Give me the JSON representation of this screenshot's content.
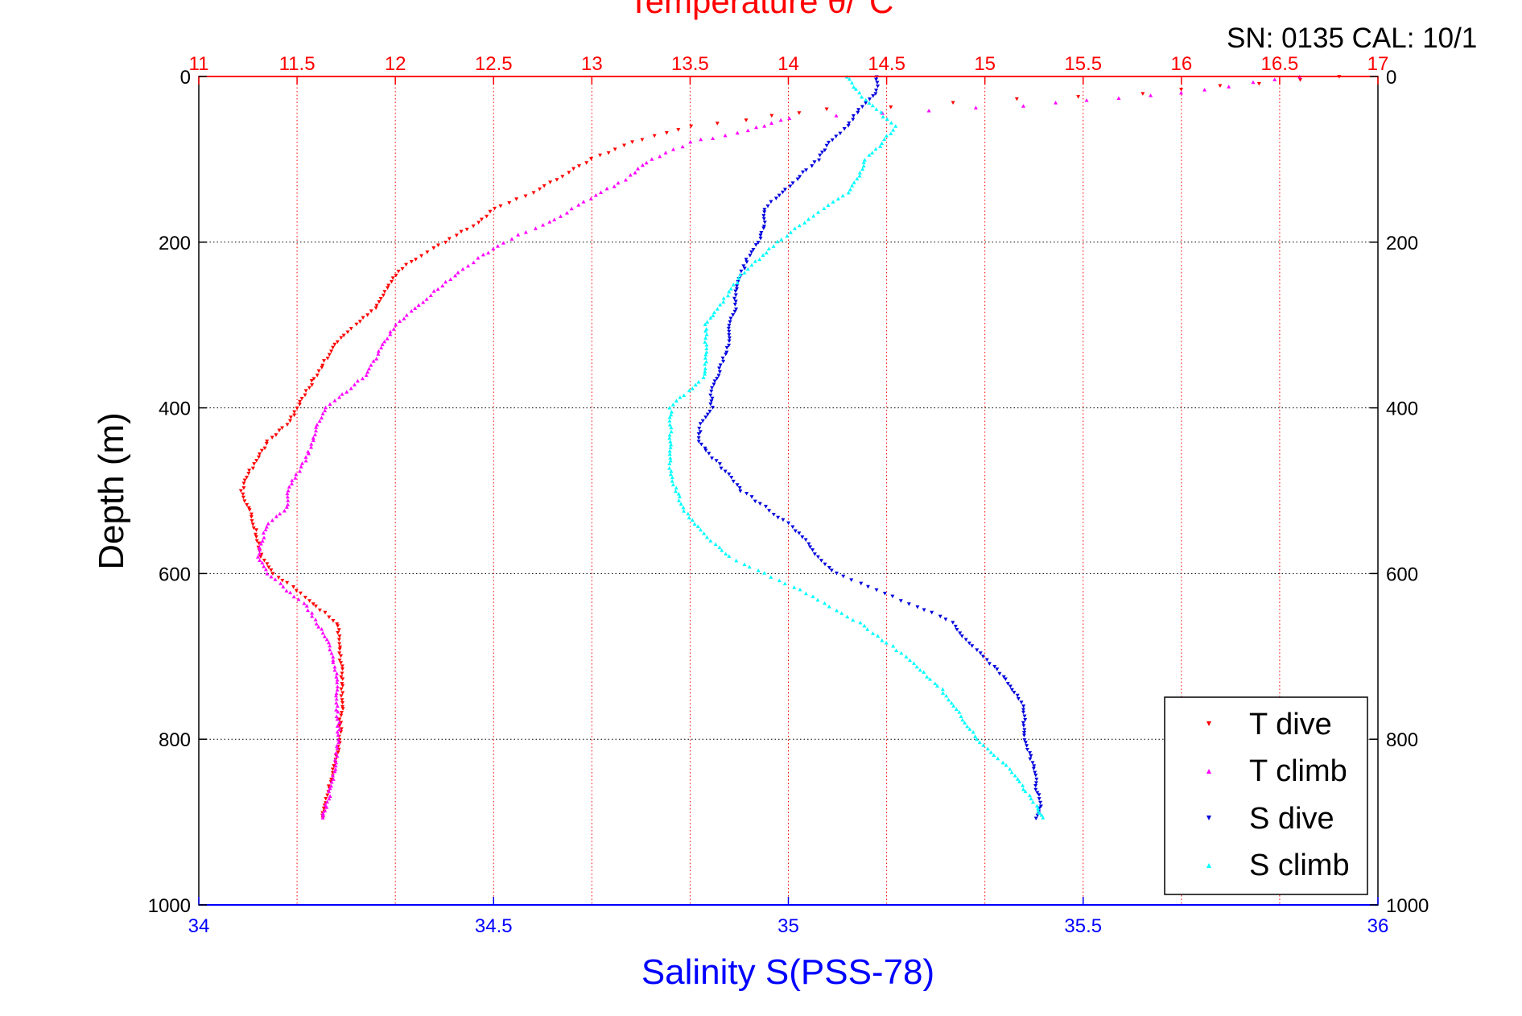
{
  "header": {
    "title": "Temperature θ/°C",
    "serial": "SN: 0135  CAL: 10/1"
  },
  "chart_data": {
    "type": "scatter",
    "title": "Temperature θ/°C",
    "xlabel_bottom": "Salinity S(PSS-78)",
    "xlabel_top": "Temperature θ/°C",
    "ylabel": "Depth (m)",
    "ylim": [
      0,
      1000
    ],
    "y_reversed": true,
    "xlim_bottom": [
      34,
      36
    ],
    "xlim_top": [
      11,
      17
    ],
    "yticks": [
      "0",
      "200",
      "400",
      "600",
      "800",
      "1000"
    ],
    "xticks_bottom": [
      "34",
      "34.5",
      "35",
      "35.5",
      "36"
    ],
    "xticks_top": [
      "11",
      "11.5",
      "12",
      "12.5",
      "13",
      "13.5",
      "14",
      "14.5",
      "15",
      "15.5",
      "16",
      "16.5",
      "17"
    ],
    "grid": true,
    "legend_position": "bottom-right",
    "colors": {
      "t_axis": "#ff0000",
      "s_axis": "#0000ff",
      "t_dive": "#ff0000",
      "t_climb": "#ff00ff",
      "s_dive": "#0000dd",
      "s_climb": "#00ffff"
    },
    "series": [
      {
        "name": "T dive",
        "axis": "temperature",
        "marker": "down-triangle",
        "depth": [
          0,
          20,
          40,
          60,
          80,
          100,
          120,
          140,
          160,
          180,
          200,
          220,
          240,
          260,
          280,
          300,
          320,
          340,
          360,
          380,
          400,
          420,
          440,
          460,
          480,
          500,
          520,
          540,
          560,
          580,
          600,
          620,
          640,
          660,
          680,
          700,
          720,
          740,
          760,
          780,
          800,
          820,
          840,
          860,
          880,
          895
        ],
        "values": [
          16.8,
          15.8,
          14.2,
          13.5,
          13.2,
          13.0,
          12.85,
          12.7,
          12.5,
          12.4,
          12.25,
          12.1,
          12.0,
          11.95,
          11.9,
          11.8,
          11.7,
          11.65,
          11.6,
          11.55,
          11.5,
          11.45,
          11.35,
          11.3,
          11.25,
          11.22,
          11.25,
          11.28,
          11.3,
          11.32,
          11.38,
          11.5,
          11.6,
          11.7,
          11.72,
          11.72,
          11.73,
          11.73,
          11.73,
          11.72,
          11.72,
          11.7,
          11.68,
          11.66,
          11.64,
          11.63
        ]
      },
      {
        "name": "T climb",
        "axis": "temperature",
        "marker": "up-triangle",
        "depth": [
          0,
          20,
          35,
          50,
          65,
          80,
          100,
          120,
          140,
          160,
          180,
          200,
          220,
          240,
          260,
          280,
          300,
          320,
          340,
          360,
          380,
          400,
          420,
          440,
          460,
          480,
          500,
          520,
          540,
          560,
          580,
          600,
          620,
          640,
          660,
          680,
          700,
          720,
          740,
          760,
          780,
          800,
          820,
          840,
          860,
          880,
          895
        ],
        "values": [
          16.6,
          16.0,
          15.2,
          14.0,
          13.8,
          13.5,
          13.3,
          13.2,
          13.05,
          12.9,
          12.75,
          12.55,
          12.42,
          12.3,
          12.2,
          12.1,
          12.0,
          11.95,
          11.9,
          11.85,
          11.75,
          11.65,
          11.6,
          11.58,
          11.55,
          11.5,
          11.45,
          11.45,
          11.35,
          11.32,
          11.3,
          11.35,
          11.45,
          11.55,
          11.6,
          11.65,
          11.68,
          11.7,
          11.7,
          11.7,
          11.71,
          11.71,
          11.7,
          11.69,
          11.67,
          11.65,
          11.63
        ]
      },
      {
        "name": "S dive",
        "axis": "salinity",
        "marker": "down-triangle",
        "depth": [
          0,
          20,
          40,
          60,
          80,
          100,
          120,
          140,
          160,
          180,
          200,
          220,
          240,
          260,
          280,
          300,
          320,
          340,
          360,
          380,
          400,
          420,
          440,
          460,
          480,
          500,
          520,
          540,
          560,
          580,
          600,
          620,
          640,
          660,
          680,
          700,
          720,
          740,
          760,
          780,
          800,
          820,
          840,
          860,
          880,
          895
        ],
        "values": [
          35.15,
          35.15,
          35.12,
          35.1,
          35.07,
          35.05,
          35.02,
          34.99,
          34.96,
          34.96,
          34.95,
          34.93,
          34.92,
          34.91,
          34.91,
          34.9,
          34.9,
          34.89,
          34.88,
          34.87,
          34.87,
          34.85,
          34.85,
          34.87,
          34.9,
          34.92,
          34.96,
          35.0,
          35.03,
          35.05,
          35.08,
          35.15,
          35.22,
          35.28,
          35.3,
          35.33,
          35.36,
          35.38,
          35.4,
          35.4,
          35.4,
          35.41,
          35.42,
          35.42,
          35.43,
          35.42
        ]
      },
      {
        "name": "S climb",
        "axis": "salinity",
        "marker": "up-triangle",
        "depth": [
          0,
          20,
          40,
          60,
          80,
          100,
          120,
          140,
          160,
          180,
          200,
          220,
          240,
          260,
          280,
          300,
          320,
          340,
          360,
          380,
          400,
          420,
          440,
          460,
          480,
          500,
          520,
          540,
          560,
          580,
          600,
          620,
          640,
          660,
          680,
          700,
          720,
          740,
          760,
          780,
          800,
          820,
          840,
          860,
          880,
          895
        ],
        "values": [
          35.1,
          35.12,
          35.15,
          35.18,
          35.16,
          35.13,
          35.12,
          35.1,
          35.06,
          35.02,
          34.98,
          34.95,
          34.92,
          34.9,
          34.88,
          34.86,
          34.86,
          34.86,
          34.86,
          34.83,
          34.8,
          34.8,
          34.8,
          34.8,
          34.8,
          34.81,
          34.82,
          34.84,
          34.87,
          34.9,
          34.96,
          35.02,
          35.07,
          35.12,
          35.16,
          35.2,
          35.23,
          35.26,
          35.28,
          35.3,
          35.32,
          35.35,
          35.38,
          35.4,
          35.42,
          35.43
        ]
      }
    ]
  }
}
